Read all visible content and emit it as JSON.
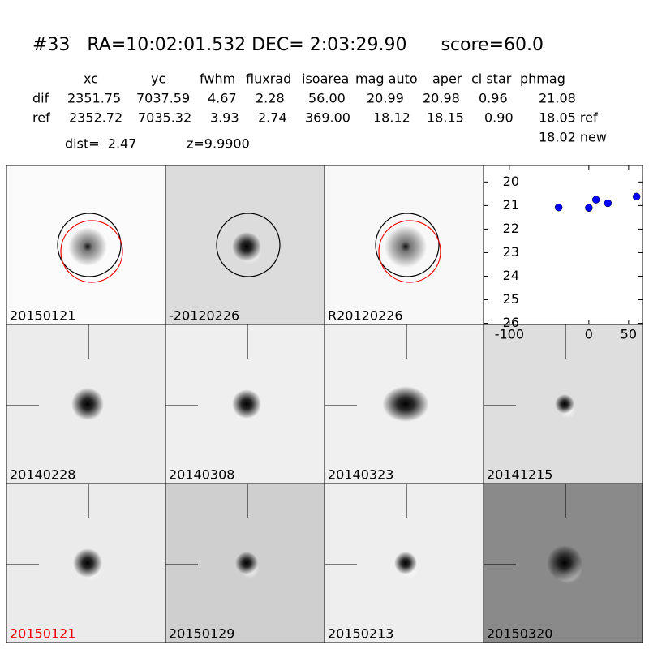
{
  "header": {
    "title": "#33   RA=10:02:01.532 DEC= 2:03:29.90      score=60.0"
  },
  "table": {
    "columns": [
      "xc",
      "yc",
      "fwhm",
      "fluxrad",
      "isoarea",
      "mag auto",
      "aper",
      "cl star",
      "phmag"
    ],
    "rows": [
      [
        "dif",
        "2351.75",
        "7037.59",
        "4.67",
        "2.28",
        "56.00",
        "20.99",
        "20.98",
        "0.96",
        "21.08"
      ],
      [
        "ref",
        "2352.72",
        "7035.32",
        "3.93",
        "2.74",
        "369.00",
        "18.12",
        "18.15",
        "0.90",
        "18.05 ref"
      ]
    ],
    "extra": "18.02 new"
  },
  "summary": {
    "dist": "dist=  2.47",
    "z": "z=9.9900"
  },
  "panels": [
    "20150121",
    "-20120226",
    "R20120226",
    "20140228",
    "20140308",
    "20140323",
    "20141215",
    "20150121",
    "20150129",
    "20150213",
    "20150320"
  ],
  "chart_data": {
    "type": "scatter",
    "color": "#0000ff",
    "x": [
      -38,
      0,
      9,
      24,
      60
    ],
    "values": [
      21.08,
      21.1,
      20.75,
      20.9,
      20.62
    ],
    "xlim": [
      -132.5,
      67.5
    ],
    "ylim": [
      26.05,
      19.3
    ],
    "xticks": [
      -100,
      0,
      50
    ],
    "yticks": [
      20,
      21,
      22,
      23,
      24,
      25,
      26
    ]
  }
}
